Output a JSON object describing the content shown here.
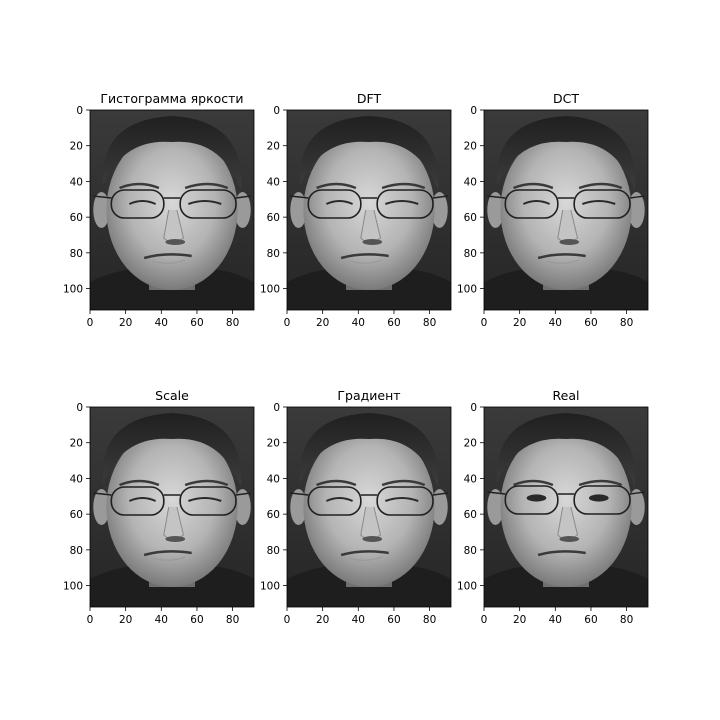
{
  "figure": {
    "background": "#ffffff",
    "image_tone": "grayscale"
  },
  "chart_data": [
    {
      "type": "image",
      "title": "Гистограмма яркости",
      "x_ticks": [
        0,
        20,
        40,
        60,
        80
      ],
      "y_ticks": [
        0,
        20,
        40,
        60,
        80,
        100
      ],
      "xlim": [
        0,
        92
      ],
      "ylim": [
        112,
        0
      ],
      "variant": "processed"
    },
    {
      "type": "image",
      "title": "DFT",
      "x_ticks": [
        0,
        20,
        40,
        60,
        80
      ],
      "y_ticks": [
        0,
        20,
        40,
        60,
        80,
        100
      ],
      "xlim": [
        0,
        92
      ],
      "ylim": [
        112,
        0
      ],
      "variant": "processed"
    },
    {
      "type": "image",
      "title": "DCT",
      "x_ticks": [
        0,
        20,
        40,
        60,
        80
      ],
      "y_ticks": [
        0,
        20,
        40,
        60,
        80,
        100
      ],
      "xlim": [
        0,
        92
      ],
      "ylim": [
        112,
        0
      ],
      "variant": "processed"
    },
    {
      "type": "image",
      "title": "Scale",
      "x_ticks": [
        0,
        20,
        40,
        60,
        80
      ],
      "y_ticks": [
        0,
        20,
        40,
        60,
        80,
        100
      ],
      "xlim": [
        0,
        92
      ],
      "ylim": [
        112,
        0
      ],
      "variant": "processed"
    },
    {
      "type": "image",
      "title": "Градиент",
      "x_ticks": [
        0,
        20,
        40,
        60,
        80
      ],
      "y_ticks": [
        0,
        20,
        40,
        60,
        80,
        100
      ],
      "xlim": [
        0,
        92
      ],
      "ylim": [
        112,
        0
      ],
      "variant": "processed"
    },
    {
      "type": "image",
      "title": "Real",
      "x_ticks": [
        0,
        20,
        40,
        60,
        80
      ],
      "y_ticks": [
        0,
        20,
        40,
        60,
        80,
        100
      ],
      "xlim": [
        0,
        92
      ],
      "ylim": [
        112,
        0
      ],
      "variant": "real"
    }
  ]
}
